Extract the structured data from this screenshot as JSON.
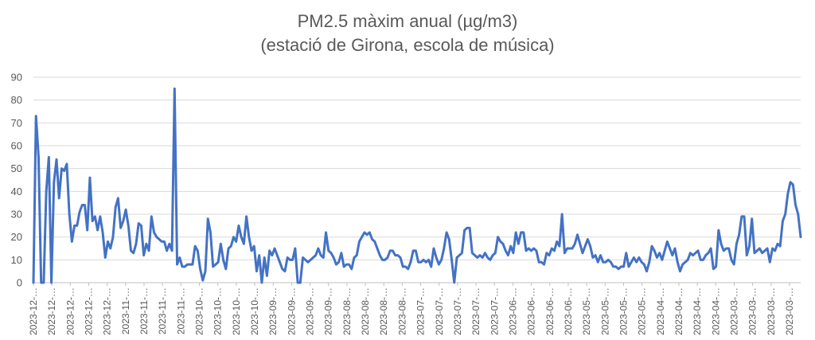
{
  "chart_data": {
    "type": "line",
    "title": "PM2.5 màxim anual (µg/m3)",
    "subtitle": "(estació de Girona, escola de música)",
    "ylim": [
      0,
      90
    ],
    "yticks": [
      0,
      10,
      20,
      30,
      40,
      50,
      60,
      70,
      80,
      90
    ],
    "grid": true,
    "color": "#4472C4",
    "x_tick_labels": [
      "2023-12-…",
      "2023-12-…",
      "2023-12-…",
      "2023-12-…",
      "2023-12-…",
      "2023-11-…",
      "2023-11-…",
      "2023-11-…",
      "2023-11-…",
      "2023-10-…",
      "2023-10-…",
      "2023-10-…",
      "2023-10-…",
      "2023-09-…",
      "2023-09-…",
      "2023-09-…",
      "2023-09-…",
      "2023-08-…",
      "2023-08-…",
      "2023-08-…",
      "2023-08-…",
      "2023-07-…",
      "2023-07-…",
      "2023-07-…",
      "2023-07-…",
      "2023-07-…",
      "2023-06-…",
      "2023-06-…",
      "2023-06-…",
      "2023-06-…",
      "2023-05-…",
      "2023-05-…",
      "2023-05-…",
      "2023-05-…",
      "2023-04-…",
      "2023-04-…",
      "2023-04-…",
      "2023-04-…",
      "2023-03-…",
      "2023-03-…",
      "2023-03-…",
      "2023-03-…"
    ],
    "values": [
      0,
      73,
      55,
      0,
      0,
      40,
      55,
      0,
      44,
      54,
      37,
      50,
      49,
      52,
      30,
      18,
      25,
      25,
      31,
      34,
      34,
      23,
      46,
      27,
      29,
      23,
      29,
      22,
      11,
      18,
      15,
      20,
      33,
      37,
      24,
      27,
      32,
      25,
      14,
      13,
      17,
      26,
      25,
      12,
      17,
      14,
      29,
      22,
      20,
      19,
      18,
      18,
      14,
      17,
      14,
      85,
      8,
      11,
      7,
      7,
      8,
      8,
      8,
      16,
      14,
      6,
      1,
      5,
      28,
      22,
      7,
      8,
      9,
      17,
      10,
      6,
      15,
      16,
      20,
      18,
      25,
      20,
      17,
      29,
      20,
      14,
      16,
      5,
      12,
      0,
      11,
      3,
      14,
      12,
      15,
      12,
      9,
      6,
      5,
      11,
      10,
      10,
      15,
      0,
      0,
      11,
      10,
      9,
      10,
      11,
      12,
      15,
      12,
      11,
      22,
      14,
      13,
      11,
      8,
      9,
      13,
      7,
      8,
      8,
      6,
      11,
      12,
      18,
      20,
      22,
      21,
      22,
      19,
      18,
      15,
      12,
      10,
      10,
      11,
      14,
      14,
      12,
      12,
      11,
      7,
      7,
      6,
      9,
      14,
      14,
      9,
      9,
      10,
      9,
      10,
      7,
      15,
      11,
      8,
      10,
      15,
      22,
      19,
      10,
      0,
      11,
      12,
      13,
      23,
      24,
      24,
      13,
      12,
      11,
      12,
      11,
      13,
      11,
      10,
      12,
      13,
      20,
      18,
      17,
      14,
      12,
      16,
      13,
      22,
      17,
      22,
      22,
      14,
      15,
      14,
      15,
      14,
      9,
      9,
      8,
      13,
      12,
      15,
      14,
      18,
      16,
      30,
      13,
      15,
      15,
      15,
      17,
      21,
      17,
      13,
      16,
      19,
      16,
      11,
      12,
      9,
      12,
      9,
      9,
      10,
      9,
      7,
      7,
      6,
      7,
      7,
      13,
      7,
      9,
      11,
      9,
      11,
      9,
      8,
      5,
      9,
      16,
      14,
      11,
      13,
      10,
      14,
      18,
      15,
      12,
      15,
      9,
      5,
      8,
      9,
      10,
      13,
      12,
      13,
      14,
      10,
      10,
      12,
      13,
      15,
      6,
      7,
      23,
      17,
      14,
      15,
      15,
      10,
      8,
      17,
      21,
      29,
      29,
      12,
      16,
      28,
      13,
      14,
      15,
      13,
      14,
      15,
      9,
      15,
      14,
      17,
      16,
      27,
      30,
      39,
      44,
      43,
      34,
      30,
      20
    ]
  }
}
